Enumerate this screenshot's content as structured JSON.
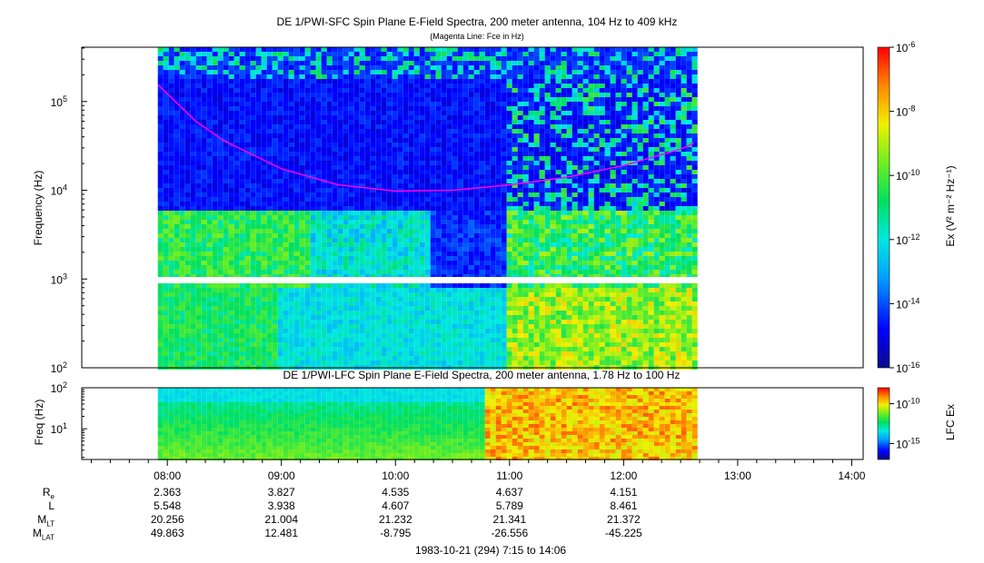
{
  "panel1": {
    "title": "DE 1/PWI-SFC  Spin Plane E-Field Spectra, 200 meter antenna, 104 Hz to 409 kHz",
    "subtitle": "(Magenta Line: Fce in Hz)",
    "ylabel": "Frequency (Hz)",
    "yticks": [
      {
        "base": "10",
        "exp": "5"
      },
      {
        "base": "10",
        "exp": "4"
      },
      {
        "base": "10",
        "exp": "3"
      },
      {
        "base": "10",
        "exp": "2"
      }
    ],
    "colorbar_label": "Ex (V² m⁻² Hz⁻¹)",
    "colorbar_ticks": [
      {
        "base": "10",
        "exp": "-6"
      },
      {
        "base": "10",
        "exp": "-8"
      },
      {
        "base": "10",
        "exp": "-10"
      },
      {
        "base": "10",
        "exp": "-12"
      },
      {
        "base": "10",
        "exp": "-14"
      },
      {
        "base": "10",
        "exp": "-16"
      }
    ]
  },
  "panel2": {
    "title": "DE 1/PWI-LFC  Spin Plane E-Field Spectra, 200 meter antenna, 1.78 Hz to 100 Hz",
    "ylabel": "Freq (Hz)",
    "yticks": [
      {
        "base": "10",
        "exp": "2"
      },
      {
        "base": "10",
        "exp": "1"
      }
    ],
    "colorbar_label": "LFC Ex",
    "colorbar_ticks": [
      {
        "base": "10",
        "exp": "-10"
      },
      {
        "base": "10",
        "exp": "-15"
      }
    ]
  },
  "time_axis": {
    "ticks": [
      "08:00",
      "09:00",
      "10:00",
      "11:00",
      "12:00",
      "13:00",
      "14:00"
    ],
    "caption": "1983-10-21 (294) 7:15 to 14:06"
  },
  "ephemeris": {
    "rows": [
      {
        "label": "R",
        "sub": "e",
        "values": [
          "2.363",
          "3.827",
          "4.535",
          "4.637",
          "4.151"
        ]
      },
      {
        "label": "L",
        "sub": "",
        "values": [
          "5.548",
          "3.938",
          "4.607",
          "5.789",
          "8.461"
        ]
      },
      {
        "label": "M",
        "sub": "LT",
        "values": [
          "20.256",
          "21.004",
          "21.232",
          "21.341",
          "21.372"
        ]
      },
      {
        "label": "M",
        "sub": "LAT",
        "values": [
          "49.863",
          "12.481",
          "-8.795",
          "-26.556",
          "-45.225"
        ]
      }
    ]
  },
  "chart_data": [
    {
      "type": "heatmap",
      "title": "DE 1/PWI-SFC  Spin Plane E-Field Spectra, 200 meter antenna, 104 Hz to 409 kHz",
      "subtitle": "(Magenta Line: Fce in Hz)",
      "xlabel": "",
      "ylabel": "Frequency (Hz)",
      "x_range": [
        "07:15",
        "14:06"
      ],
      "data_x_range": [
        "07:55",
        "12:37"
      ],
      "ylim": [
        100,
        409000
      ],
      "yscale": "log",
      "zlabel": "Ex (V² m⁻² Hz⁻¹)",
      "zlim": [
        1e-16,
        1e-06
      ],
      "zscale": "log",
      "colormap": "rainbow",
      "data_gap_hz": [
        1000,
        900
      ],
      "series": [
        {
          "name": "Fce",
          "color": "#ff00ff",
          "x": [
            "07:55",
            "08:15",
            "08:30",
            "09:00",
            "09:30",
            "10:00",
            "10:30",
            "11:00",
            "11:30",
            "12:00",
            "12:30",
            "12:37"
          ],
          "y": [
            155000,
            60000,
            36000,
            17500,
            11500,
            9800,
            10000,
            11500,
            14000,
            19000,
            29000,
            34000
          ]
        }
      ]
    },
    {
      "type": "heatmap",
      "title": "DE 1/PWI-LFC  Spin Plane E-Field Spectra, 200 meter antenna, 1.78 Hz to 100 Hz",
      "xlabel": "",
      "ylabel": "Freq (Hz)",
      "x_range": [
        "07:15",
        "14:06"
      ],
      "data_x_range": [
        "07:55",
        "12:37"
      ],
      "ylim": [
        1.78,
        100
      ],
      "yscale": "log",
      "zlabel": "LFC Ex",
      "zlim": [
        1e-17,
        1e-08
      ],
      "zscale": "log",
      "colormap": "rainbow"
    }
  ]
}
